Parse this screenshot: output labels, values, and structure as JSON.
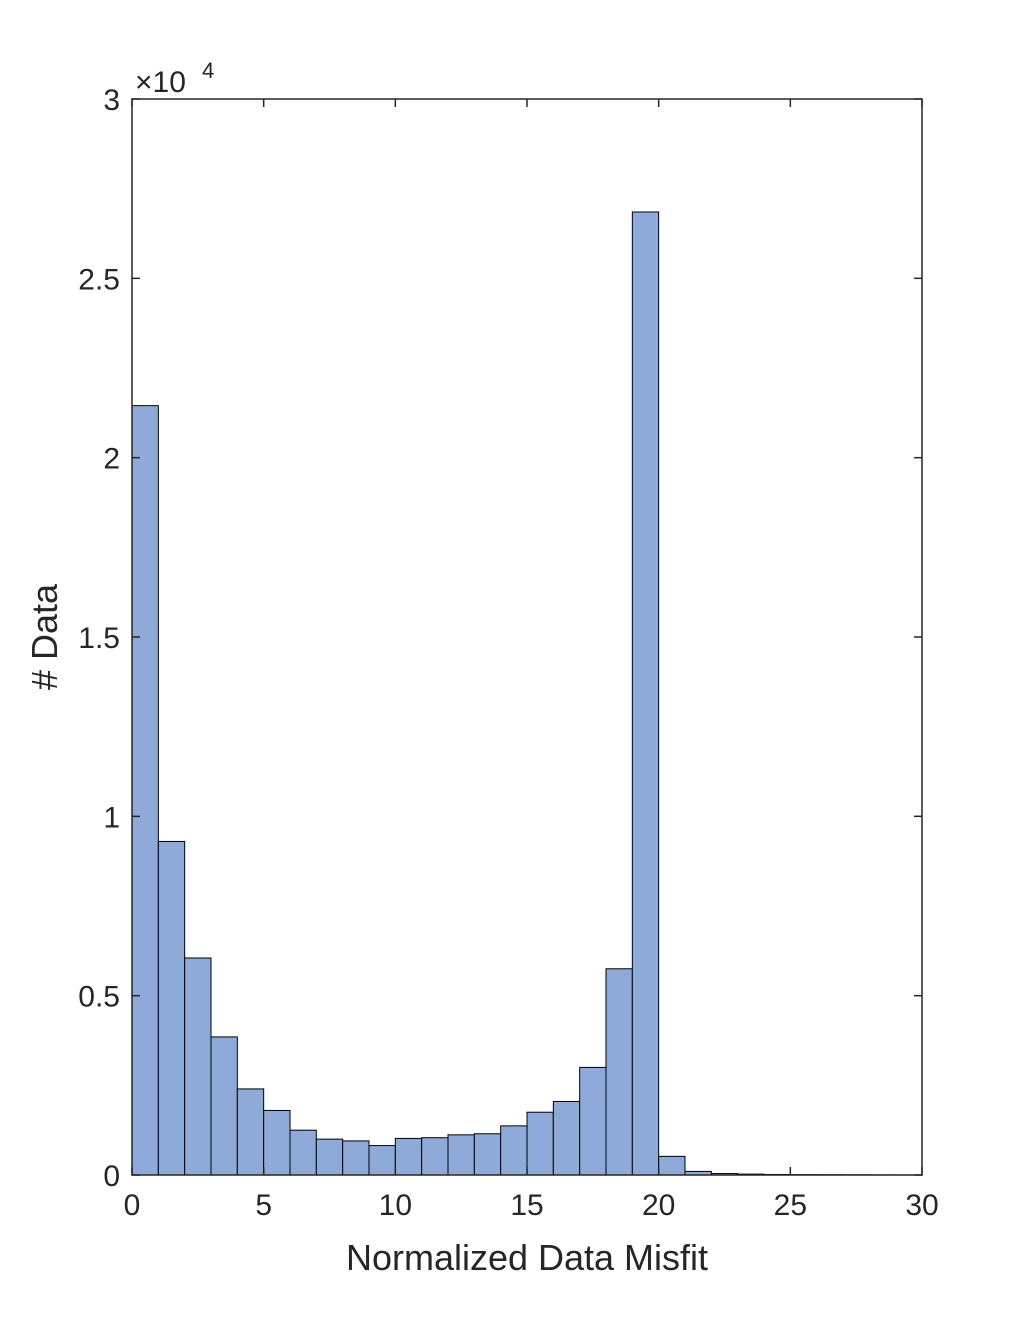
{
  "chart_data": {
    "type": "bar",
    "title": "",
    "xlabel": "Normalized Data Misfit",
    "ylabel": "# Data",
    "xlim": [
      0,
      30
    ],
    "ylim": [
      0,
      30000
    ],
    "y_exponent_label": "×10",
    "y_exponent": "4",
    "xticks": [
      "0",
      "5",
      "10",
      "15",
      "20",
      "25",
      "30"
    ],
    "yticks": [
      "0",
      "0.5",
      "1",
      "1.5",
      "2",
      "2.5",
      "3"
    ],
    "grid": false,
    "bin_width": 1,
    "bin_edges_start": 0,
    "values": [
      21450,
      9300,
      6050,
      3850,
      2400,
      1800,
      1250,
      1000,
      950,
      820,
      1020,
      1040,
      1120,
      1150,
      1370,
      1750,
      2050,
      3000,
      5750,
      26850,
      520,
      100,
      40,
      25,
      15,
      10,
      8,
      5,
      3,
      2
    ],
    "bar_color": "#8eaad8",
    "edge_color": "#000000"
  }
}
